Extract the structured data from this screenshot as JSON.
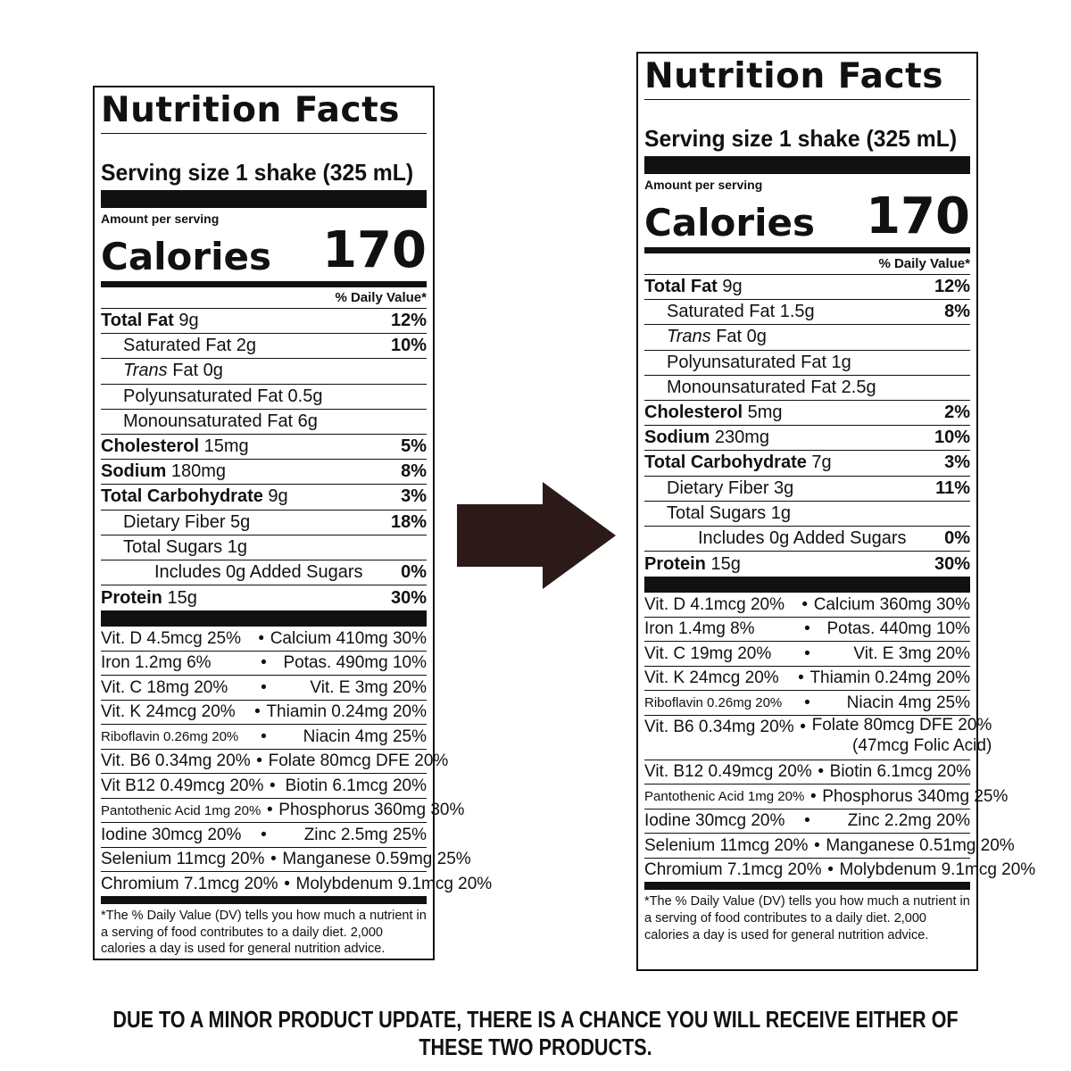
{
  "labels": [
    {
      "title": "Nutrition Facts",
      "serving": "Serving size  1 shake (325 mL)",
      "amount_per_serving": "Amount per serving",
      "calories_label": "Calories",
      "calories_value": "170",
      "dv_header": "% Daily Value*",
      "rows": [
        {
          "bold": "Total Fat",
          "rest": " 9g",
          "dv": "12%"
        },
        {
          "indent": 1,
          "rest": "Saturated Fat 2g",
          "dv": "10%"
        },
        {
          "indent": 1,
          "italic": "Trans",
          "rest": " Fat 0g",
          "dv": ""
        },
        {
          "indent": 1,
          "rest": "Polyunsaturated Fat 0.5g",
          "dv": ""
        },
        {
          "indent": 1,
          "rest": "Monounsaturated Fat 6g",
          "dv": ""
        },
        {
          "bold": "Cholesterol",
          "rest": " 15mg",
          "dv": "5%"
        },
        {
          "bold": "Sodium",
          "rest": " 180mg",
          "dv": "8%"
        },
        {
          "bold": "Total Carbohydrate",
          "rest": " 9g",
          "dv": "3%"
        },
        {
          "indent": 1,
          "rest": "Dietary Fiber 5g",
          "dv": "18%"
        },
        {
          "indent": 1,
          "rest": "Total Sugars 1g",
          "dv": ""
        },
        {
          "indent": 2,
          "rest": "Includes 0g Added Sugars",
          "dv": "0%"
        },
        {
          "bold": "Protein",
          "rest": " 15g",
          "dv": "30%"
        }
      ],
      "vitamins": [
        [
          "Vit. D 4.5mcg 25%",
          "Calcium 410mg 30%"
        ],
        [
          "Iron 1.2mg 6%",
          "Potas. 490mg 10%"
        ],
        [
          "Vit. C 18mg 20%",
          "Vit. E 3mg 20%"
        ],
        [
          "Vit. K 24mcg 20%",
          "Thiamin 0.24mg 20%"
        ],
        [
          "Riboflavin 0.26mg 20%",
          "Niacin 4mg 25%"
        ],
        [
          "Vit. B6 0.34mg 20%",
          "Folate 80mcg DFE 20%"
        ],
        [
          "Vit B12 0.49mcg 20%",
          "Biotin 6.1mcg 20%"
        ],
        [
          "Pantothenic Acid 1mg 20%",
          "Phosphorus 360mg 30%"
        ],
        [
          "Iodine 30mcg 20%",
          "Zinc 2.5mg 25%"
        ],
        [
          "Selenium 11mcg 20%",
          "Manganese 0.59mg 25%"
        ],
        [
          "Chromium 7.1mcg 20%",
          "Molybdenum 9.1mcg 20%"
        ]
      ],
      "footnote": "*The % Daily Value (DV) tells you how much a nutrient in a serving of food contributes to a daily diet. 2,000 calories a day is used for general nutrition advice."
    },
    {
      "title": "Nutrition Facts",
      "serving": "Serving size  1 shake (325 mL)",
      "amount_per_serving": "Amount per serving",
      "calories_label": "Calories",
      "calories_value": "170",
      "dv_header": "% Daily Value*",
      "rows": [
        {
          "bold": "Total Fat",
          "rest": " 9g",
          "dv": "12%"
        },
        {
          "indent": 1,
          "rest": "Saturated Fat 1.5g",
          "dv": "8%"
        },
        {
          "indent": 1,
          "italic": "Trans",
          "rest": " Fat 0g",
          "dv": ""
        },
        {
          "indent": 1,
          "rest": "Polyunsaturated Fat 1g",
          "dv": ""
        },
        {
          "indent": 1,
          "rest": "Monounsaturated Fat 2.5g",
          "dv": ""
        },
        {
          "bold": "Cholesterol",
          "rest": " 5mg",
          "dv": "2%"
        },
        {
          "bold": "Sodium",
          "rest": " 230mg",
          "dv": "10%"
        },
        {
          "bold": "Total Carbohydrate",
          "rest": " 7g",
          "dv": "3%"
        },
        {
          "indent": 1,
          "rest": "Dietary Fiber 3g",
          "dv": "11%"
        },
        {
          "indent": 1,
          "rest": "Total Sugars 1g",
          "dv": ""
        },
        {
          "indent": 2,
          "rest": "Includes 0g Added Sugars",
          "dv": "0%"
        },
        {
          "bold": "Protein",
          "rest": " 15g",
          "dv": "30%"
        }
      ],
      "vitamins": [
        [
          "Vit. D 4.1mcg 20%",
          "Calcium 360mg 30%"
        ],
        [
          "Iron 1.4mg 8%",
          "Potas. 440mg 10%"
        ],
        [
          "Vit. C 19mg 20%",
          "Vit. E 3mg 20%"
        ],
        [
          "Vit. K 24mcg 20%",
          "Thiamin 0.24mg 20%"
        ],
        [
          "Riboflavin 0.26mg 20%",
          "Niacin 4mg 25%"
        ],
        [
          "Vit. B6 0.34mg 20%",
          "Folate 80mcg DFE 20%\n(47mcg Folic Acid)"
        ],
        [
          "Vit. B12 0.49mcg 20%",
          "Biotin 6.1mcg 20%"
        ],
        [
          "Pantothenic Acid 1mg 20%",
          "Phosphorus 340mg 25%"
        ],
        [
          "Iodine 30mcg 20%",
          "Zinc 2.2mg 20%"
        ],
        [
          "Selenium 11mcg 20%",
          "Manganese 0.51mg 20%"
        ],
        [
          "Chromium 7.1mcg 20%",
          "Molybdenum 9.1mcg 20%"
        ]
      ],
      "footnote": "*The % Daily Value (DV) tells you how much a nutrient in a serving of food contributes to a daily diet. 2,000 calories a day is used for general nutrition advice."
    }
  ],
  "separator": "•",
  "arrow_color": "#2b1a17",
  "banner": "DUE TO A MINOR PRODUCT UPDATE, THERE IS A CHANCE YOU WILL RECEIVE EITHER OF THESE TWO PRODUCTS."
}
